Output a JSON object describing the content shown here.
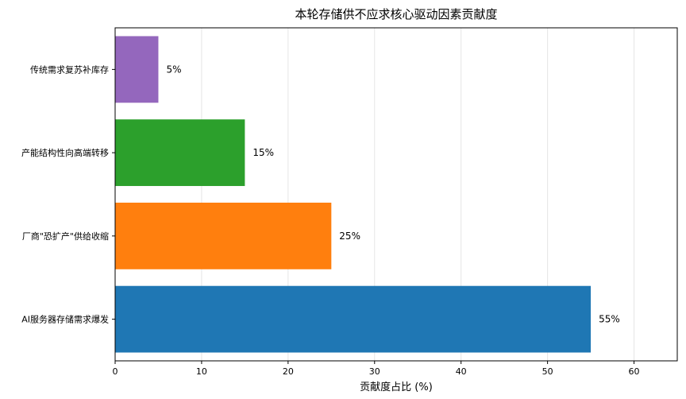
{
  "chart_data": {
    "type": "bar",
    "orientation": "horizontal",
    "title": "本轮存储供不应求核心驱动因素贡献度",
    "xlabel": "贡献度占比 (%)",
    "ylabel": "",
    "xlim": [
      0,
      65
    ],
    "xticks": [
      0,
      10,
      20,
      30,
      40,
      50,
      60
    ],
    "grid": "x-only",
    "categories": [
      "AI服务器存储需求爆发",
      "厂商\"恐扩产\"供给收缩",
      "产能结构性向高端转移",
      "传统需求复苏补库存"
    ],
    "values": [
      55,
      25,
      15,
      5
    ],
    "value_labels": [
      "55%",
      "25%",
      "15%",
      "5%"
    ],
    "colors": [
      "#1f77b4",
      "#ff7f0e",
      "#2ca02c",
      "#9467bd"
    ]
  }
}
